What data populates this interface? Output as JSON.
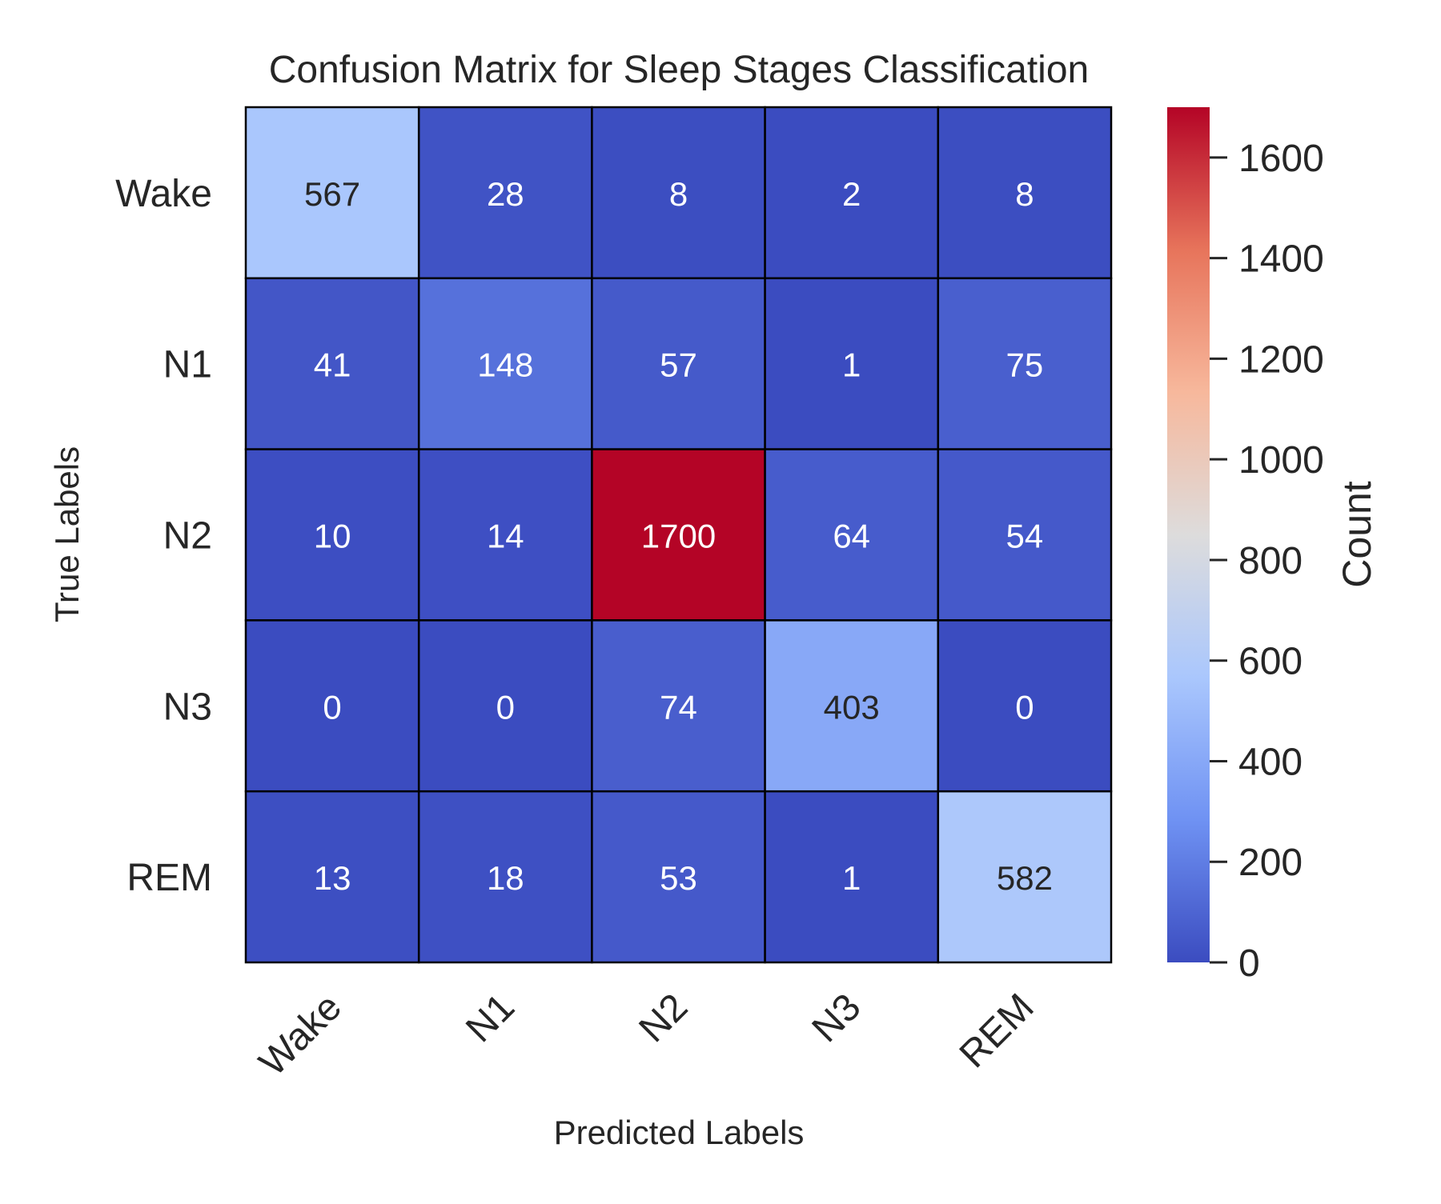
{
  "chart_data": {
    "type": "heatmap",
    "title": "Confusion Matrix for Sleep Stages Classification",
    "xlabel": "Predicted Labels",
    "ylabel": "True Labels",
    "x_categories": [
      "Wake",
      "N1",
      "N2",
      "N3",
      "REM"
    ],
    "y_categories": [
      "Wake",
      "N1",
      "N2",
      "N3",
      "REM"
    ],
    "values": [
      [
        567,
        28,
        8,
        2,
        8
      ],
      [
        41,
        148,
        57,
        1,
        75
      ],
      [
        10,
        14,
        1700,
        64,
        54
      ],
      [
        0,
        0,
        74,
        403,
        0
      ],
      [
        13,
        18,
        53,
        1,
        582
      ]
    ],
    "colormap": "coolwarm",
    "colormap_stops": [
      "#3b4cc0",
      "#6f92f3",
      "#aac7fd",
      "#dddcdc",
      "#f7b89c",
      "#e7745b",
      "#b40426"
    ],
    "value_range": [
      0,
      1700
    ],
    "colorbar": {
      "label": "Count",
      "ticks": [
        0,
        200,
        400,
        600,
        800,
        1000,
        1200,
        1400,
        1600
      ]
    },
    "grid_line_color": "#000000"
  }
}
